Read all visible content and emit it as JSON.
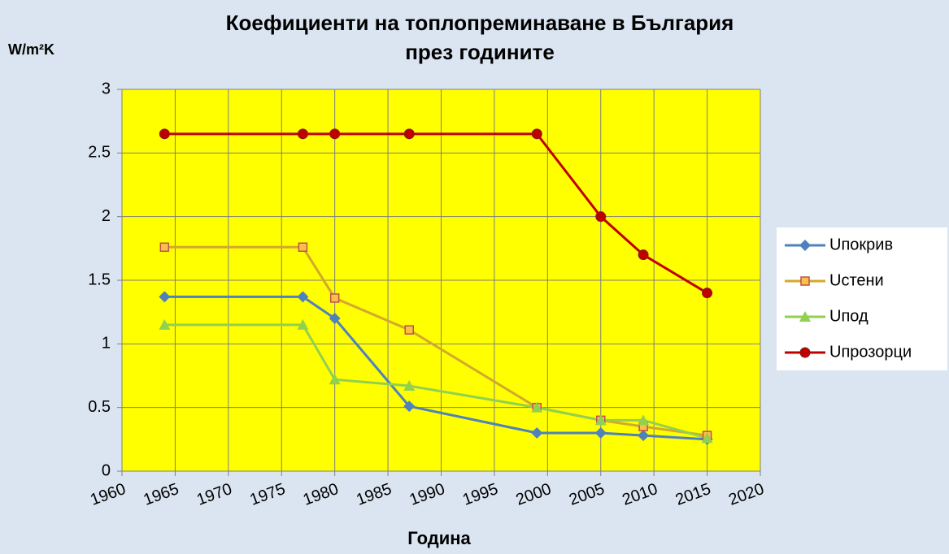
{
  "chart_data": {
    "type": "line",
    "title": [
      "Коефициенти на топлопреминаване в България",
      "през годините"
    ],
    "y_label": "W/m²K",
    "x_label": "Година",
    "x": [
      1964,
      1977,
      1980,
      1987,
      1999,
      2005,
      2009,
      2015
    ],
    "series": [
      {
        "name": "Uпокрив",
        "color": "#4f81bd",
        "marker": "diamond",
        "values": [
          1.37,
          1.37,
          1.2,
          0.51,
          0.3,
          0.3,
          0.28,
          0.25
        ]
      },
      {
        "name": "Uстени",
        "color": "#d4a82a",
        "marker": "square",
        "values": [
          1.76,
          1.76,
          1.36,
          1.11,
          0.5,
          0.4,
          0.35,
          0.28
        ]
      },
      {
        "name": "Uпод",
        "color": "#92d050",
        "marker": "triangle",
        "values": [
          1.15,
          1.15,
          0.72,
          0.67,
          0.5,
          0.4,
          0.4,
          0.26
        ]
      },
      {
        "name": "Uпрозорци",
        "color": "#c00000",
        "marker": "circle",
        "values": [
          2.65,
          2.65,
          2.65,
          2.65,
          2.65,
          2.0,
          1.7,
          1.4
        ]
      }
    ],
    "xlim": [
      1960,
      2020
    ],
    "xticks": [
      1960,
      1965,
      1970,
      1975,
      1980,
      1985,
      1990,
      1995,
      2000,
      2005,
      2010,
      2015,
      2020
    ],
    "ylim": [
      0,
      3
    ],
    "yticks": [
      0,
      0.5,
      1,
      1.5,
      2,
      2.5,
      3
    ],
    "grid": true,
    "legend": "right"
  }
}
